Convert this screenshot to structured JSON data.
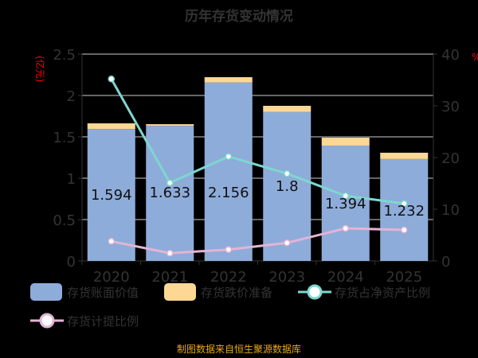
{
  "chart_data": {
    "type": "bar",
    "title": "历年存货变动情况",
    "categories": [
      "2020",
      "2021",
      "2022",
      "2023",
      "2024",
      "2025"
    ],
    "ylabel": "(亿元)",
    "y2label": "%",
    "ylim": [
      0,
      2.5
    ],
    "y2lim": [
      0,
      40
    ],
    "yticks": [
      "0",
      "0.5",
      "1",
      "1.5",
      "2",
      "2.5"
    ],
    "y2ticks": [
      "0",
      "10",
      "20",
      "30",
      "40"
    ],
    "series": [
      {
        "name": "存货账面价值",
        "type": "bar",
        "stack": "a",
        "color": "#8eacd9",
        "values": [
          1.594,
          1.633,
          2.156,
          1.8,
          1.394,
          1.232
        ],
        "labels": [
          "1.594",
          "1.633",
          "2.156",
          "1.8",
          "1.394",
          "1.232"
        ]
      },
      {
        "name": "存货跌价准备",
        "type": "bar",
        "stack": "a",
        "color": "#fdd794",
        "values": [
          0.069,
          0.02,
          0.065,
          0.075,
          0.096,
          0.076
        ]
      },
      {
        "name": "存货占净资产比例",
        "type": "line",
        "axis": "right",
        "color": "#7fd6cf",
        "values": [
          35.2,
          15.1,
          20.2,
          16.9,
          12.6,
          11.1
        ]
      },
      {
        "name": "存货计提比例",
        "type": "line",
        "axis": "right",
        "color": "#e3b4d6",
        "values": [
          3.8,
          1.5,
          2.2,
          3.5,
          6.3,
          6.0
        ]
      }
    ],
    "grid": true,
    "legend_position": "bottom"
  },
  "footer": "制图数据来自恒生聚源数据库"
}
